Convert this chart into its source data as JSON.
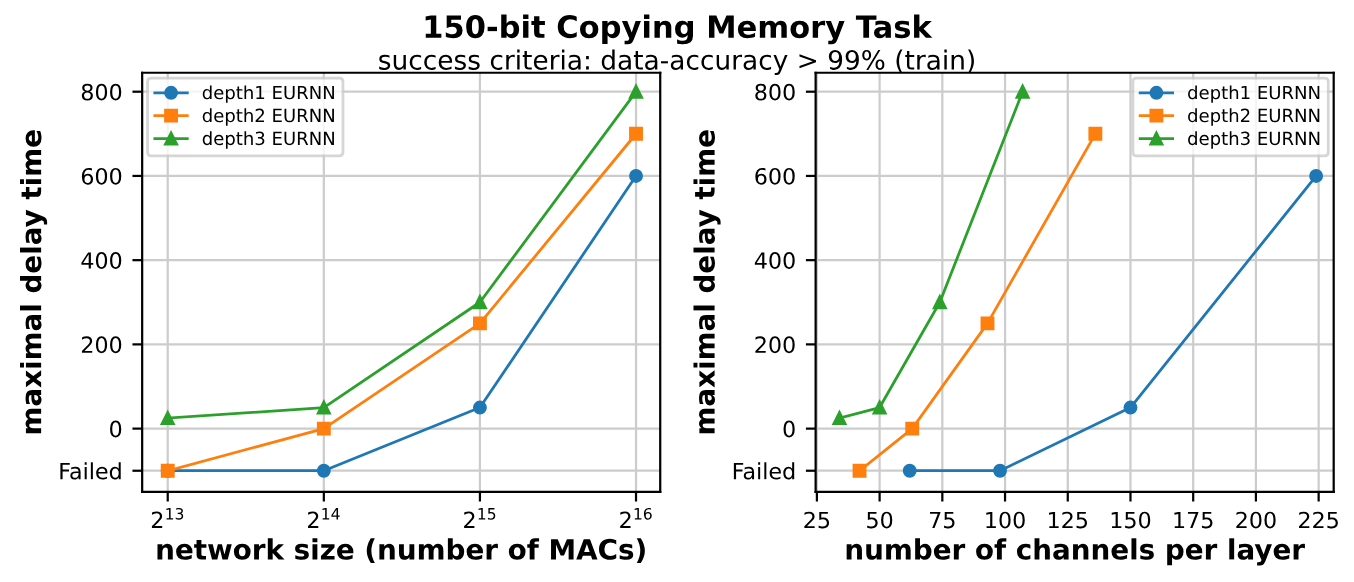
{
  "chart_data": [
    {
      "type": "line",
      "title": "150-bit Copying Memory Task",
      "subtitle": "success criteria: data-accuracy > 99% (train)",
      "xlabel": "network size (number of MACs)",
      "ylabel": "maximal delay time",
      "log": "x",
      "x": [
        8192,
        16384,
        32768,
        65536
      ],
      "xlim": [
        7313,
        72970
      ],
      "xticks": [
        {
          "value": 8192,
          "label": "2$^{13}$"
        },
        {
          "value": 16384,
          "label": "2$^{14}$"
        },
        {
          "value": 32768,
          "label": "2$^{15}$"
        },
        {
          "value": 65536,
          "label": "2$^{16}$"
        }
      ],
      "ylim": [
        -150,
        845
      ],
      "yticks": [
        {
          "value": -100,
          "label": "Failed"
        },
        0,
        200,
        400,
        600,
        800
      ],
      "grid": true,
      "legend": "top left",
      "series": [
        {
          "name": "depth1 EURNN",
          "color": "#1f77b4",
          "marker": "circle",
          "values": [
            -100,
            -100,
            50,
            600
          ]
        },
        {
          "name": "depth2 EURNN",
          "color": "#ff7f0e",
          "marker": "square",
          "values": [
            -100,
            0,
            250,
            700
          ]
        },
        {
          "name": "depth3 EURNN",
          "color": "#2ca02c",
          "marker": "triangle",
          "values": [
            25,
            50,
            300,
            800
          ]
        }
      ]
    },
    {
      "type": "line",
      "xlabel": "number of channels per layer",
      "ylabel": "maximal delay time",
      "xlim": [
        24.5,
        231
      ],
      "xticks": [
        25,
        50,
        75,
        100,
        125,
        150,
        175,
        200,
        225
      ],
      "ylim": [
        -150,
        845
      ],
      "yticks": [
        {
          "value": -100,
          "label": "Failed"
        },
        0,
        200,
        400,
        600,
        800
      ],
      "grid": true,
      "legend": "top right",
      "series": [
        {
          "name": "depth1 EURNN",
          "color": "#1f77b4",
          "marker": "circle",
          "x": [
            62,
            98,
            150,
            224
          ],
          "values": [
            -100,
            -100,
            50,
            600
          ]
        },
        {
          "name": "depth2 EURNN",
          "color": "#ff7f0e",
          "marker": "square",
          "x": [
            42,
            63,
            93,
            136
          ],
          "values": [
            -100,
            0,
            250,
            700
          ]
        },
        {
          "name": "depth3 EURNN",
          "color": "#2ca02c",
          "marker": "triangle",
          "x": [
            34,
            50,
            74,
            107
          ],
          "values": [
            25,
            50,
            300,
            800
          ]
        }
      ]
    }
  ]
}
